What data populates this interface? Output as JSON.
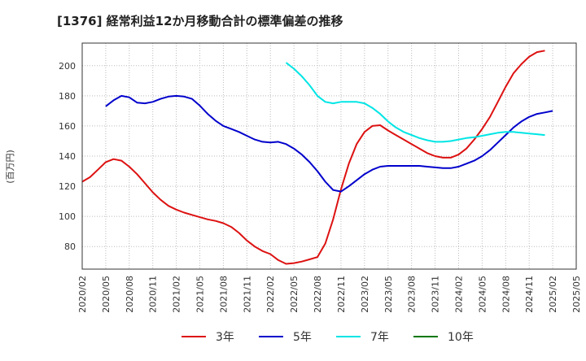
{
  "chart_data": {
    "type": "line",
    "title": "[1376]  経常利益12か月移動合計の標準偏差の推移",
    "ylabel": "(百万円)",
    "xlabel": "",
    "ylim": [
      65,
      215
    ],
    "yticks": [
      80,
      100,
      120,
      140,
      160,
      180,
      200
    ],
    "xlim": [
      "2020-02",
      "2025-05"
    ],
    "xticks": [
      "2020/02",
      "2020/05",
      "2020/08",
      "2020/11",
      "2021/02",
      "2021/05",
      "2021/08",
      "2021/11",
      "2022/02",
      "2022/05",
      "2022/08",
      "2022/11",
      "2023/02",
      "2023/05",
      "2023/08",
      "2023/11",
      "2024/02",
      "2024/05",
      "2024/08",
      "2024/11",
      "2025/02",
      "2025/05"
    ],
    "grid": true,
    "legend_position": "bottom",
    "series": [
      {
        "name": "3年",
        "color": "#dd1111",
        "start": "2020-02",
        "values": [
          123,
          126,
          131,
          136,
          138,
          137,
          133,
          128,
          122,
          116,
          111,
          107,
          104.5,
          102.5,
          101,
          99.5,
          98,
          97,
          95.5,
          93,
          89,
          84,
          80,
          77,
          75,
          71,
          68.5,
          69,
          70,
          71.5,
          73,
          82,
          98,
          118,
          135,
          148,
          156,
          160,
          160.5,
          157,
          154,
          151,
          148,
          145,
          142,
          140,
          139,
          139,
          141,
          145,
          151,
          158,
          166,
          176,
          186,
          195,
          201,
          206,
          209,
          210
        ]
      },
      {
        "name": "5年",
        "color": "#0000cc",
        "start": "2020-05",
        "values": [
          173,
          177,
          180,
          179,
          175.5,
          175,
          176,
          178,
          179.5,
          180,
          179.5,
          178,
          173.5,
          168,
          163.5,
          160,
          158,
          156,
          153.5,
          151,
          149.5,
          149,
          149.5,
          148,
          145,
          141,
          136,
          130,
          123,
          117.5,
          116.5,
          120,
          124,
          128,
          131,
          133,
          133.5,
          133.5,
          133.5,
          133.5,
          133.5,
          133,
          132.5,
          132,
          132,
          133,
          135,
          137,
          140,
          144,
          149,
          154,
          159,
          163,
          166,
          168,
          169,
          170
        ]
      },
      {
        "name": "7年",
        "color": "#00e5e5",
        "start": "2022-04",
        "values": [
          202,
          198,
          193,
          187,
          180,
          176,
          175,
          176,
          176,
          176,
          175,
          172,
          168,
          163,
          159,
          156,
          154,
          152,
          150.5,
          149.5,
          149.5,
          150,
          151,
          152,
          152.5,
          153.5,
          154.5,
          155.5,
          156,
          156,
          155.5,
          155,
          154.5,
          154
        ]
      },
      {
        "name": "10年",
        "color": "#007700",
        "start": "2025-02",
        "values": []
      }
    ]
  }
}
